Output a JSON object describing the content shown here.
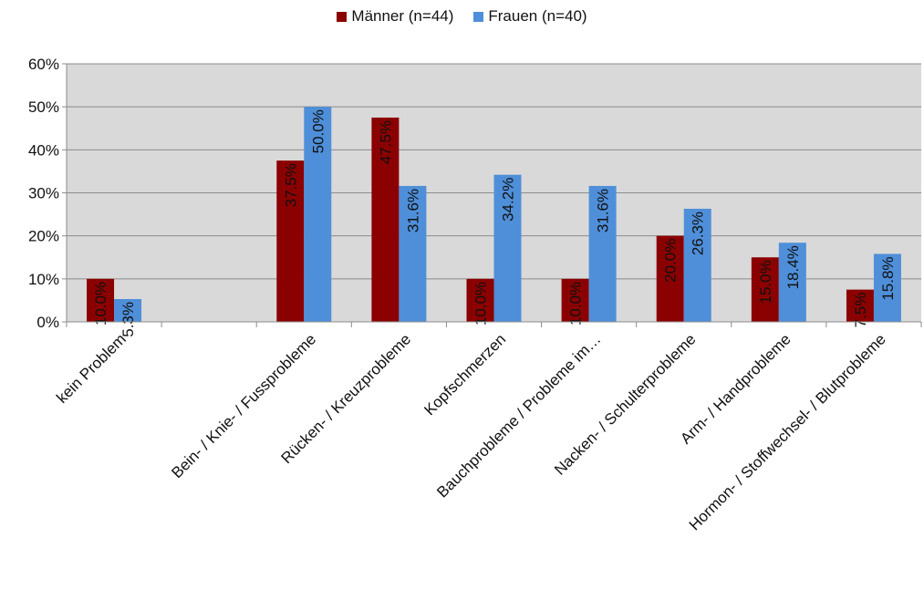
{
  "chart_data": {
    "type": "bar",
    "categories": [
      "kein Problem",
      "",
      "Bein- / Knie- / Fussprobleme",
      "Rücken- / Kreuzprobleme",
      "Kopfschmerzen",
      "Bauchprobleme / Probleme im…",
      "Nacken- / Schulterprobleme",
      "Arm- / Handprobleme",
      "Hormon- / Stoffwechsel- / Blutprobleme"
    ],
    "series": [
      {
        "name": "Männer (n=44)",
        "color": "#8b0000",
        "values": [
          10.0,
          null,
          37.5,
          47.5,
          10.0,
          10.0,
          20.0,
          15.0,
          7.5
        ],
        "labels": [
          "10.0%",
          "",
          "37.5%",
          "47.5%",
          "10.0%",
          "10.0%",
          "20.0%",
          "15.0%",
          "7.5%"
        ]
      },
      {
        "name": "Frauen (n=40)",
        "color": "#4f8fd9",
        "values": [
          5.3,
          null,
          50.0,
          31.6,
          34.2,
          31.6,
          26.3,
          18.4,
          15.8
        ],
        "labels": [
          "5.3%",
          "",
          "50.0%",
          "31.6%",
          "34.2%",
          "31.6%",
          "26.3%",
          "18.4%",
          "15.8%"
        ]
      }
    ],
    "y_ticks": [
      "0%",
      "10%",
      "20%",
      "30%",
      "40%",
      "50%",
      "60%"
    ],
    "ylim": [
      0,
      60
    ],
    "grid": true,
    "legend_position": "top-center",
    "plot_background": "#d9d9d9"
  }
}
